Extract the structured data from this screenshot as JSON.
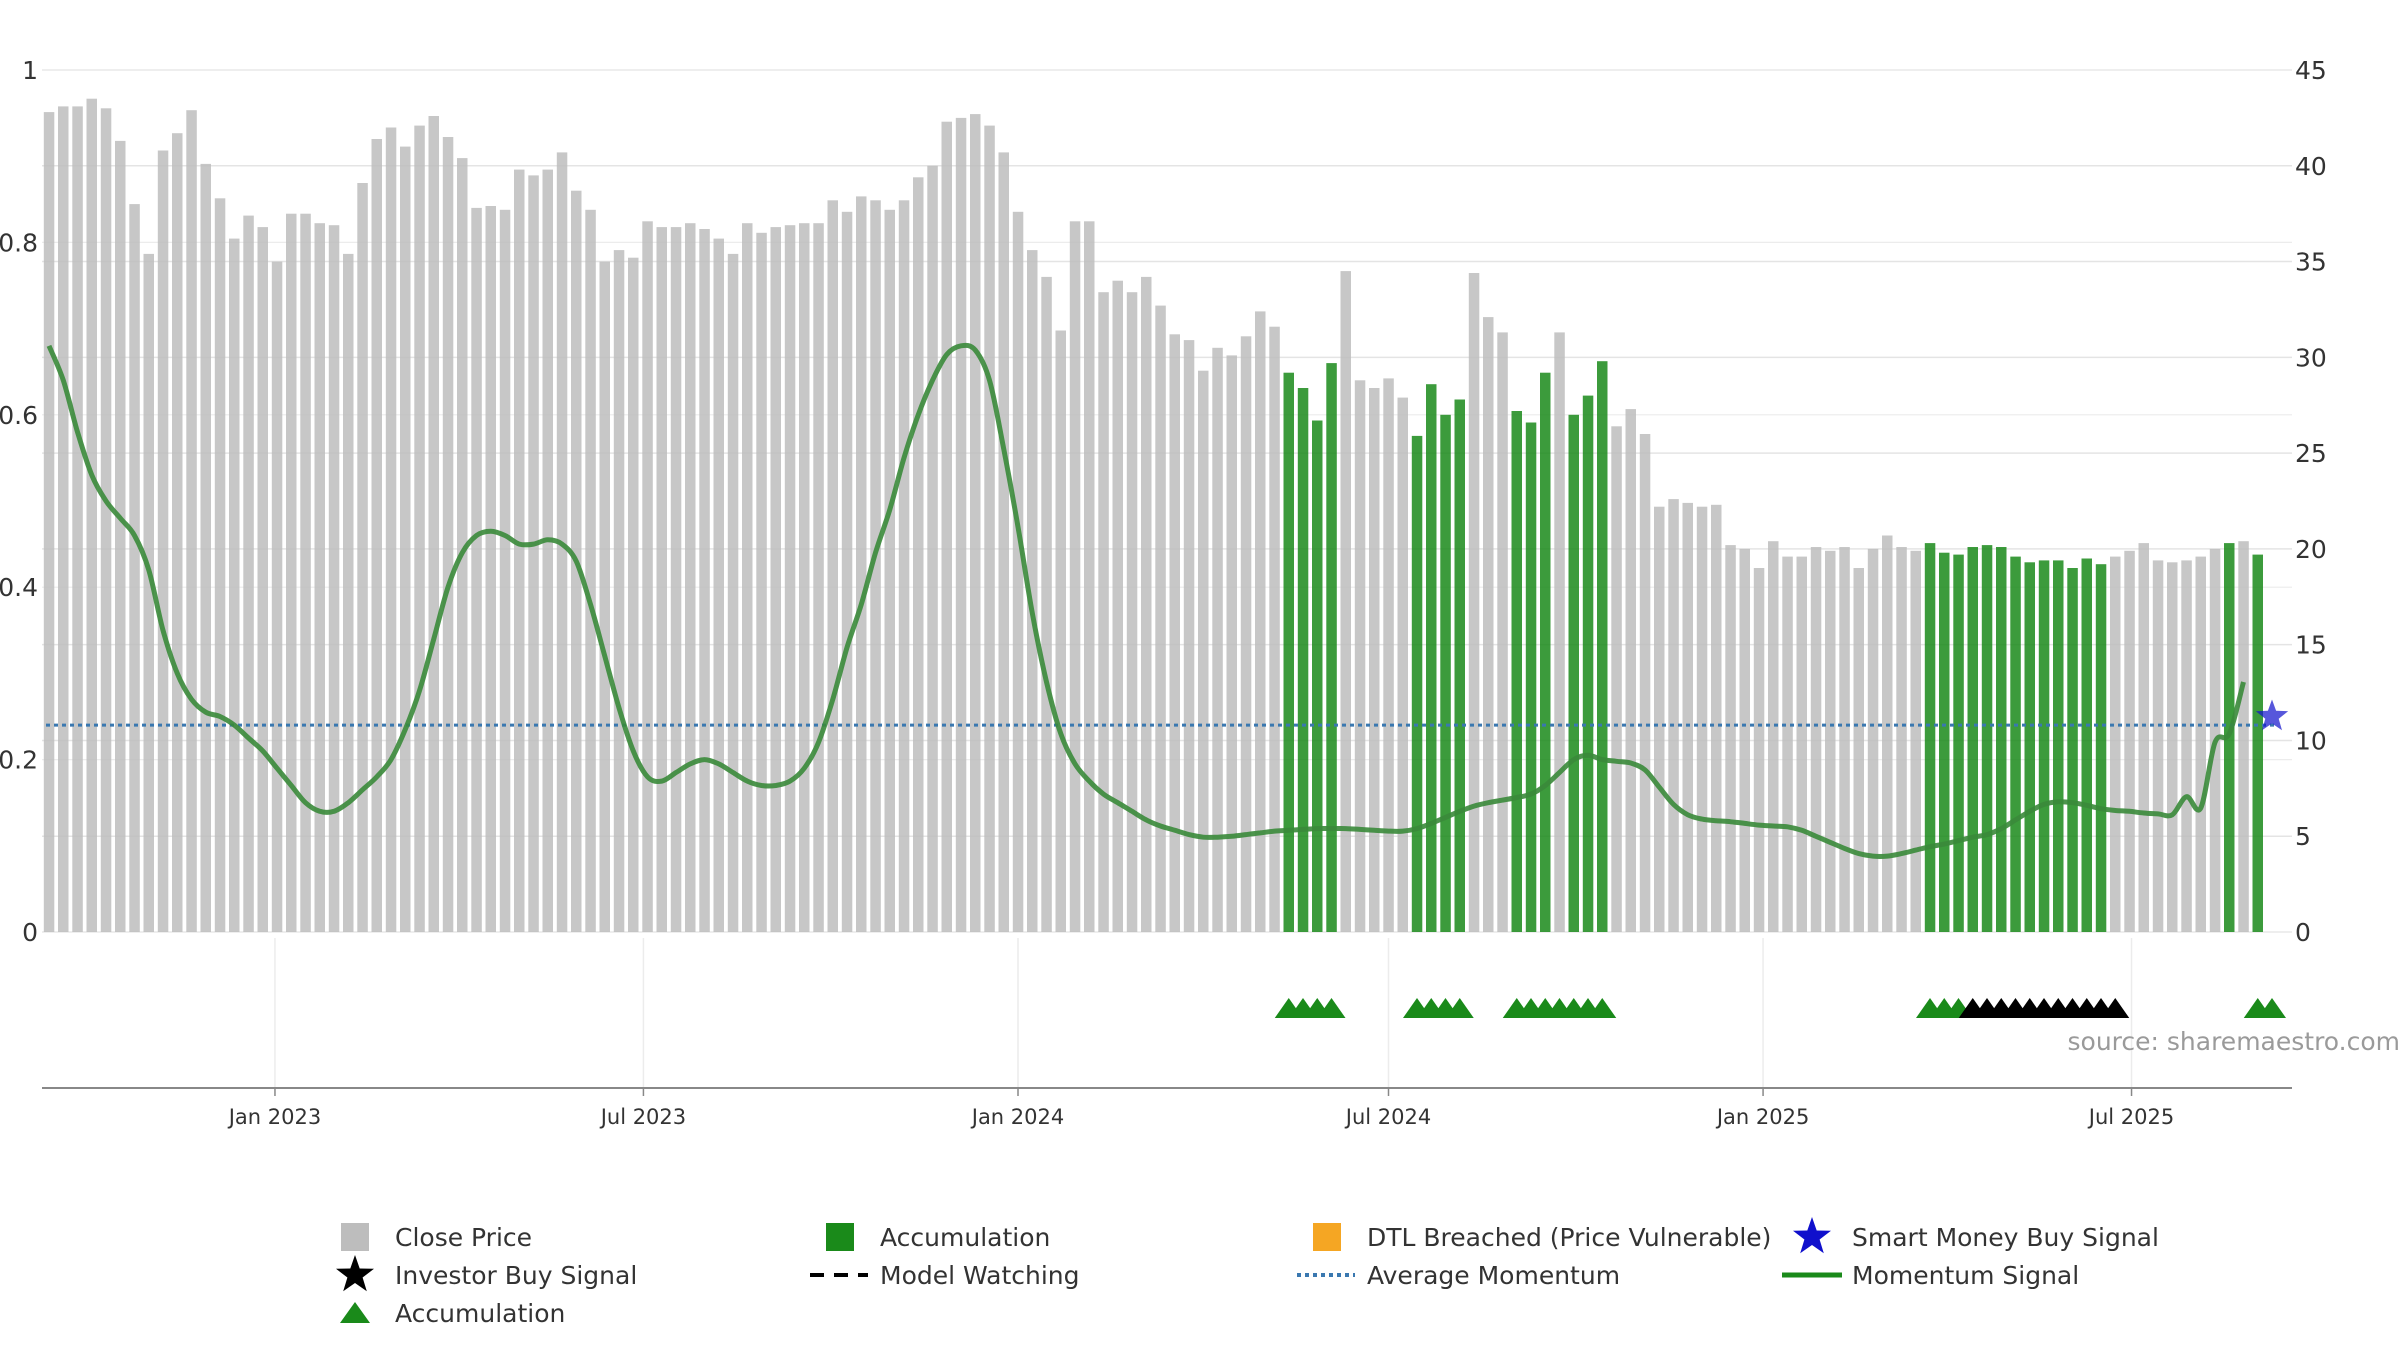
{
  "chart_data": {
    "type": "bar",
    "title": "",
    "xlabel": "",
    "ylabel_left": "",
    "ylabel_right": "",
    "ylim_left": [
      0,
      1
    ],
    "ylim_right": [
      0,
      45
    ],
    "yticks_left": [
      "0",
      "0.2",
      "0.4",
      "0.6",
      "0.8",
      "1"
    ],
    "yticks_right": [
      "0",
      "5",
      "10",
      "15",
      "20",
      "25",
      "30",
      "35",
      "40",
      "45"
    ],
    "xticks": [
      "Jan 2023",
      "Jul 2023",
      "Jan 2024",
      "Jul 2024",
      "Jan 2025",
      "Jul 2025"
    ],
    "start_date": "2022-09-12",
    "interval_days": 7,
    "close_price": [
      42.8,
      43.1,
      43.1,
      43.5,
      43.0,
      41.3,
      38.0,
      35.4,
      40.8,
      41.7,
      42.9,
      40.1,
      38.3,
      36.2,
      37.4,
      36.8,
      35.0,
      37.5,
      37.5,
      37.0,
      36.9,
      35.4,
      39.1,
      41.4,
      42.0,
      41.0,
      42.1,
      42.6,
      41.5,
      40.4,
      37.8,
      37.9,
      37.7,
      39.8,
      39.5,
      39.8,
      40.7,
      38.7,
      37.7,
      35.0,
      35.6,
      35.2,
      37.1,
      36.8,
      36.8,
      37.0,
      36.7,
      36.2,
      35.4,
      37.0,
      36.5,
      36.8,
      36.9,
      37.0,
      37.0,
      38.2,
      37.6,
      38.4,
      38.2,
      37.7,
      38.2,
      39.4,
      40.0,
      42.3,
      42.5,
      42.7,
      42.1,
      40.7,
      37.6,
      35.6,
      34.2,
      31.4,
      37.1,
      37.1,
      33.4,
      34.0,
      33.4,
      34.2,
      32.7,
      31.2,
      30.9,
      29.3,
      30.5,
      30.1,
      31.1,
      32.4,
      31.6,
      29.2,
      28.4,
      26.7,
      29.7,
      34.5,
      28.8,
      28.4,
      28.9,
      27.9,
      25.9,
      28.6,
      27.0,
      27.8,
      34.4,
      32.1,
      31.3,
      27.2,
      26.6,
      29.2,
      31.3,
      27.0,
      28.0,
      29.8,
      26.4,
      27.3,
      26.0,
      22.2,
      22.6,
      22.4,
      22.2,
      22.3,
      20.2,
      20.0,
      19.0,
      20.4,
      19.6,
      19.6,
      20.1,
      19.9,
      20.1,
      19.0,
      20.0,
      20.7,
      20.1,
      19.9,
      20.3,
      19.8,
      19.7,
      20.1,
      20.2,
      20.1,
      19.6,
      19.3,
      19.4,
      19.4,
      19.0,
      19.5,
      19.2,
      19.6,
      19.9,
      20.3,
      19.4,
      19.3,
      19.4,
      19.6,
      20.0,
      20.3,
      20.4,
      19.7
    ],
    "accumulation_ranges": [
      [
        87,
        90
      ],
      [
        96,
        99
      ],
      [
        103,
        105
      ],
      [
        107,
        109
      ],
      [
        132,
        144
      ],
      [
        153,
        153
      ],
      [
        155,
        156
      ]
    ],
    "accumulation_marker_ranges": [
      [
        87,
        90
      ],
      [
        96,
        99
      ],
      [
        103,
        106
      ],
      [
        107,
        109
      ],
      [
        132,
        134
      ],
      [
        155,
        156
      ]
    ],
    "investor_buy_marker_ranges": [
      [
        135,
        145
      ]
    ],
    "smart_money_buy_signals": [
      {
        "index": 156,
        "value": 0.25
      }
    ],
    "average_momentum": 0.24,
    "momentum_signal": [
      0.68,
      0.64,
      0.58,
      0.53,
      0.5,
      0.48,
      0.46,
      0.42,
      0.35,
      0.3,
      0.27,
      0.255,
      0.25,
      0.24,
      0.225,
      0.21,
      0.19,
      0.17,
      0.15,
      0.14,
      0.14,
      0.15,
      0.165,
      0.18,
      0.2,
      0.235,
      0.28,
      0.34,
      0.4,
      0.44,
      0.46,
      0.465,
      0.46,
      0.45,
      0.45,
      0.455,
      0.45,
      0.43,
      0.38,
      0.32,
      0.26,
      0.21,
      0.18,
      0.175,
      0.185,
      0.195,
      0.2,
      0.195,
      0.185,
      0.175,
      0.17,
      0.17,
      0.175,
      0.19,
      0.22,
      0.27,
      0.33,
      0.38,
      0.44,
      0.49,
      0.55,
      0.6,
      0.64,
      0.67,
      0.68,
      0.675,
      0.64,
      0.56,
      0.47,
      0.37,
      0.29,
      0.23,
      0.195,
      0.175,
      0.16,
      0.15,
      0.14,
      0.13,
      0.123,
      0.118,
      0.113,
      0.11,
      0.11,
      0.111,
      0.113,
      0.115,
      0.117,
      0.118,
      0.119,
      0.12,
      0.12,
      0.12,
      0.119,
      0.118,
      0.117,
      0.117,
      0.12,
      0.126,
      0.133,
      0.14,
      0.146,
      0.15,
      0.153,
      0.156,
      0.16,
      0.17,
      0.185,
      0.2,
      0.205,
      0.2,
      0.198,
      0.196,
      0.188,
      0.168,
      0.148,
      0.136,
      0.131,
      0.129,
      0.128,
      0.126,
      0.124,
      0.123,
      0.122,
      0.118,
      0.111,
      0.104,
      0.097,
      0.091,
      0.088,
      0.088,
      0.091,
      0.095,
      0.099,
      0.102,
      0.106,
      0.11,
      0.113,
      0.12,
      0.13,
      0.14,
      0.148,
      0.151,
      0.15,
      0.147,
      0.143,
      0.141,
      0.14,
      0.138,
      0.137,
      0.136,
      0.157,
      0.144,
      0.22,
      0.23,
      0.29
    ],
    "colors": {
      "close_price": "#bdbdbd",
      "accumulation": "#1a8a1a",
      "dtl_breached": "#f5a623",
      "smart_money": "#1010cc",
      "investor_buy": "#000000",
      "average_momentum": "#3a78b0",
      "momentum_signal": "#3a8a3a"
    },
    "source_text": "source: sharemaestro.com",
    "legend": [
      {
        "label": "Close Price",
        "marker": "square",
        "color": "#bdbdbd"
      },
      {
        "label": "Accumulation",
        "marker": "square",
        "color": "#1a8a1a"
      },
      {
        "label": "DTL Breached (Price Vulnerable)",
        "marker": "square",
        "color": "#f5a623"
      },
      {
        "label": "Smart Money Buy Signal",
        "marker": "star",
        "color": "#1010cc"
      },
      {
        "label": "Investor Buy Signal",
        "marker": "star",
        "color": "#000000"
      },
      {
        "label": "Model Watching",
        "marker": "dash",
        "color": "#000000"
      },
      {
        "label": "Average Momentum",
        "marker": "dot",
        "color": "#3a78b0"
      },
      {
        "label": "Momentum Signal",
        "marker": "line",
        "color": "#1a8a1a"
      },
      {
        "label": "Accumulation",
        "marker": "triangle",
        "color": "#1a8a1a"
      }
    ]
  }
}
